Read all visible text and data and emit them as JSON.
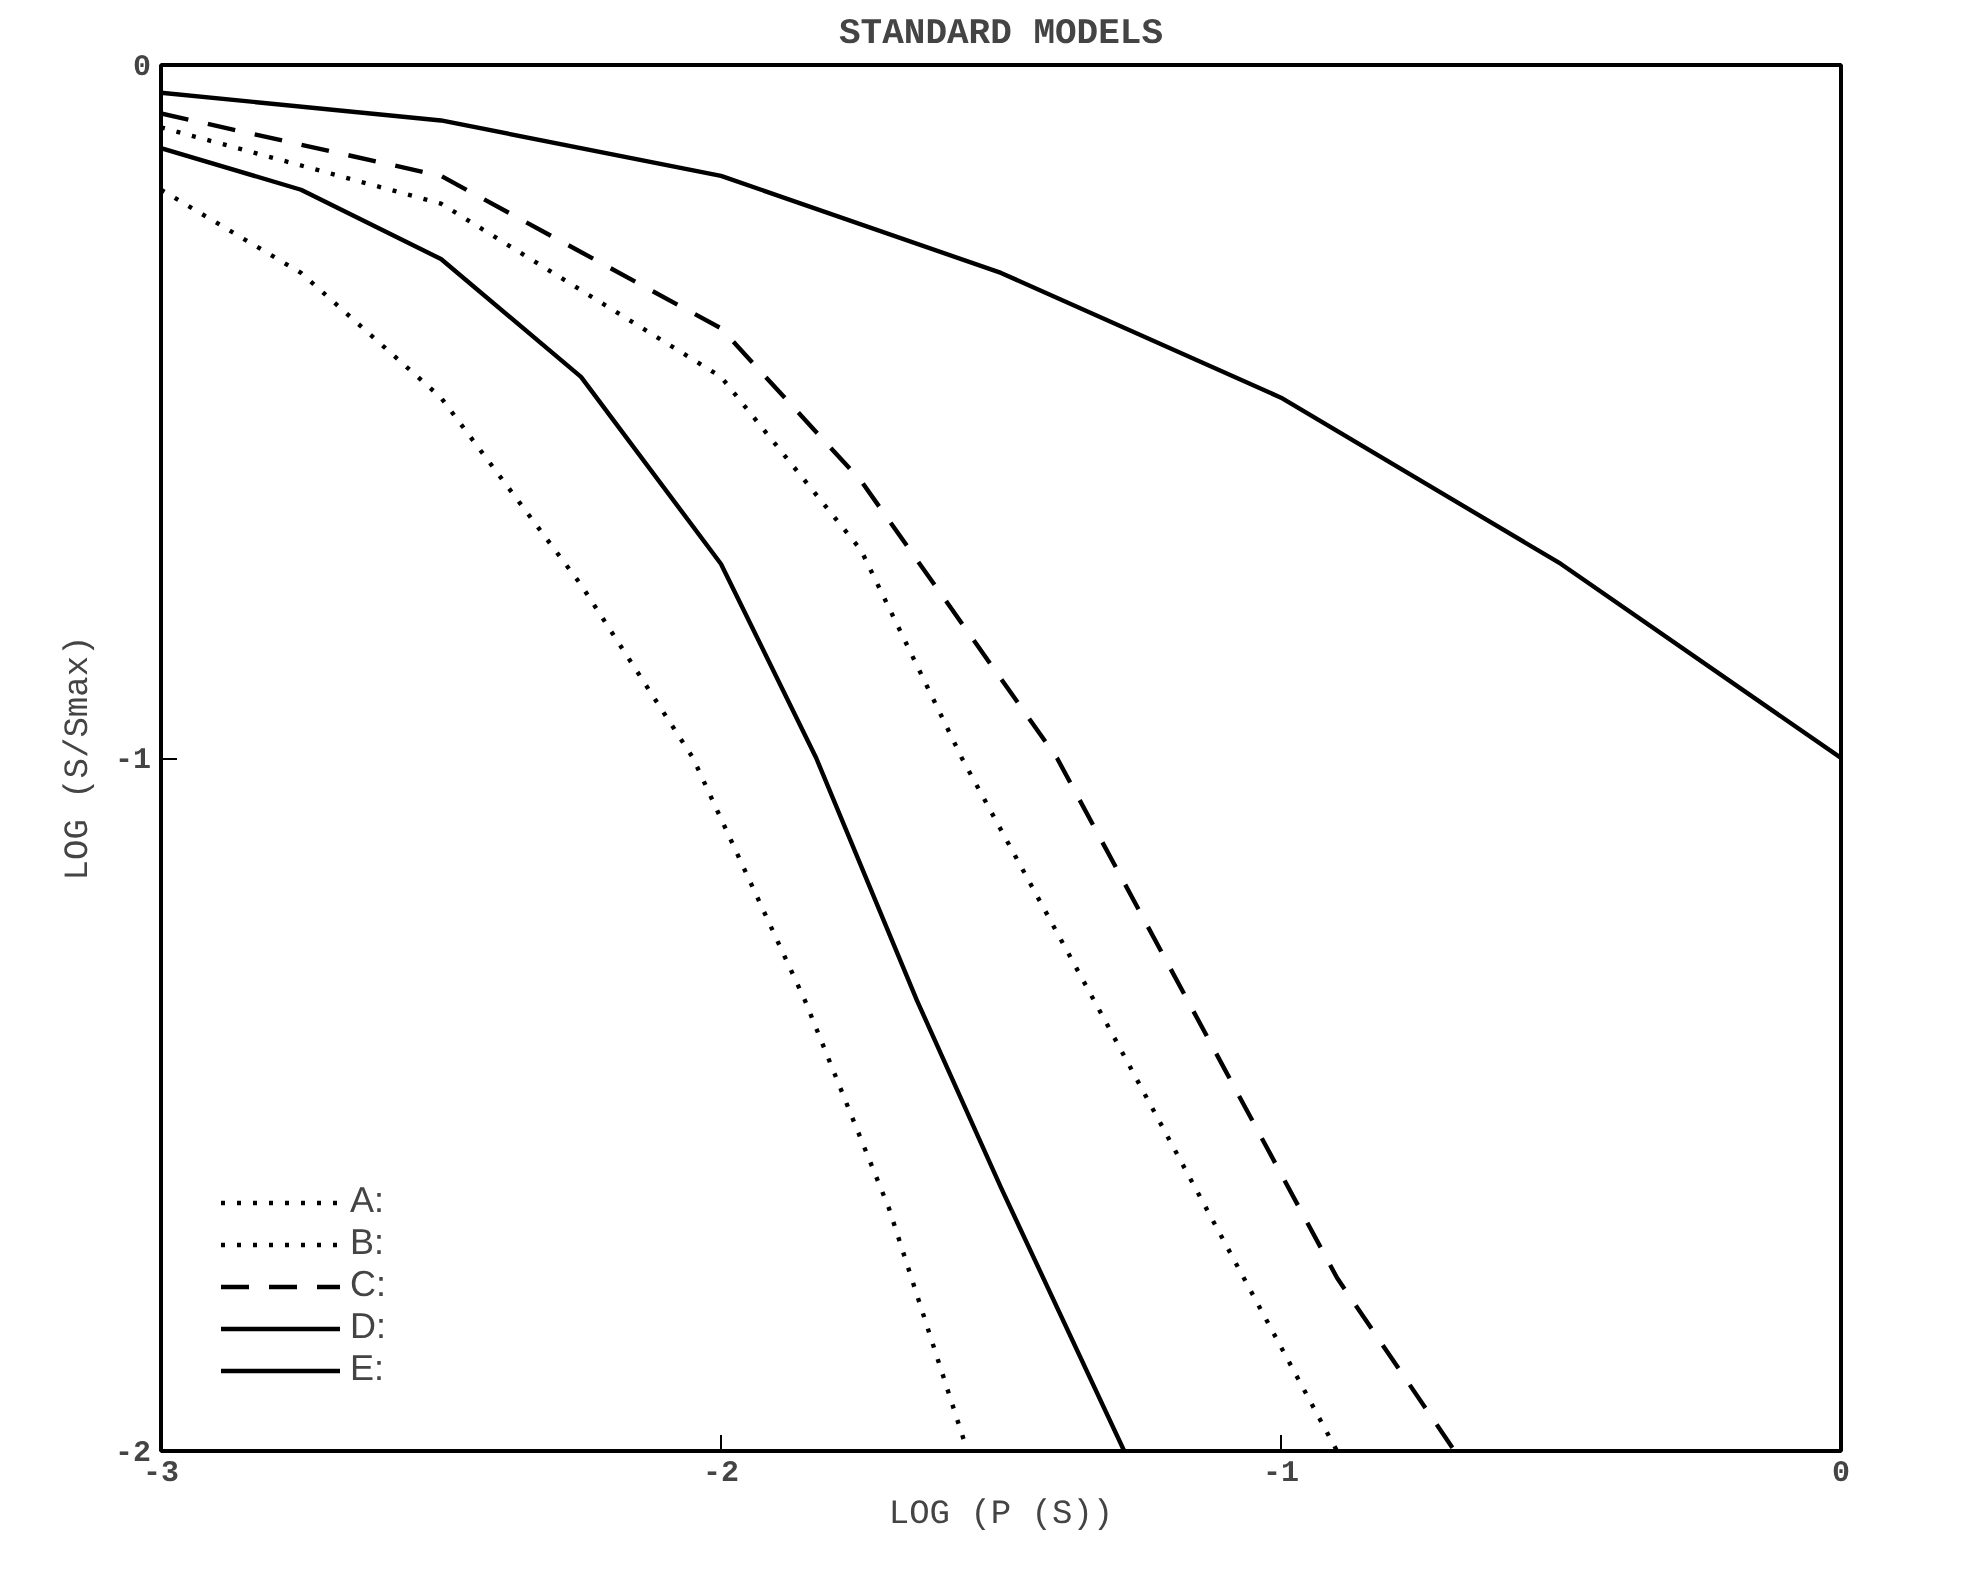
{
  "chart_data": {
    "type": "line",
    "title": "STANDARD MODELS",
    "xlabel": "LOG (P (S))",
    "ylabel": "LOG (S/Smax)",
    "xlim": [
      -3,
      0
    ],
    "ylim": [
      -2,
      0
    ],
    "xticks": [
      -3,
      -2,
      -1,
      0
    ],
    "yticks": [
      -2,
      -1,
      0
    ],
    "grid": false,
    "legend": "bottom left",
    "marker": "none",
    "series": [
      {
        "name": "A:",
        "color": "#000000",
        "line_style": "dotted",
        "x": [
          -3,
          -2.5,
          -2,
          -1.75,
          -1.57,
          -1.3,
          -1.1,
          -0.9
        ],
        "values": [
          -0.09,
          -0.2,
          -0.45,
          -0.7,
          -1.0,
          -1.4,
          -1.7,
          -2.0
        ]
      },
      {
        "name": "B:",
        "color": "#000000",
        "line_style": "dotted",
        "x": [
          -3,
          -2.75,
          -2.5,
          -2.25,
          -2.05,
          -1.85,
          -1.7,
          -1.56
        ],
        "values": [
          -0.18,
          -0.3,
          -0.48,
          -0.75,
          -1.0,
          -1.35,
          -1.65,
          -2.0
        ]
      },
      {
        "name": "C:",
        "color": "#000000",
        "line_style": "dashed",
        "x": [
          -3,
          -2.5,
          -2,
          -1.75,
          -1.4,
          -1.1,
          -0.9,
          -0.69
        ],
        "values": [
          -0.07,
          -0.16,
          -0.38,
          -0.6,
          -1.0,
          -1.45,
          -1.75,
          -2.0
        ]
      },
      {
        "name": "D:",
        "color": "#000000",
        "line_style": "solid",
        "x": [
          -3,
          -2.75,
          -2.5,
          -2.25,
          -2,
          -1.83,
          -1.65,
          -1.5,
          -1.28
        ],
        "values": [
          -0.12,
          -0.18,
          -0.28,
          -0.45,
          -0.72,
          -1.0,
          -1.35,
          -1.62,
          -2.0
        ]
      },
      {
        "name": "E:",
        "color": "#000000",
        "line_style": "solid",
        "x": [
          -3,
          -2.5,
          -2,
          -1.5,
          -1,
          -0.5,
          0
        ],
        "values": [
          -0.04,
          -0.08,
          -0.16,
          -0.3,
          -0.48,
          -0.72,
          -1.0
        ]
      }
    ]
  }
}
